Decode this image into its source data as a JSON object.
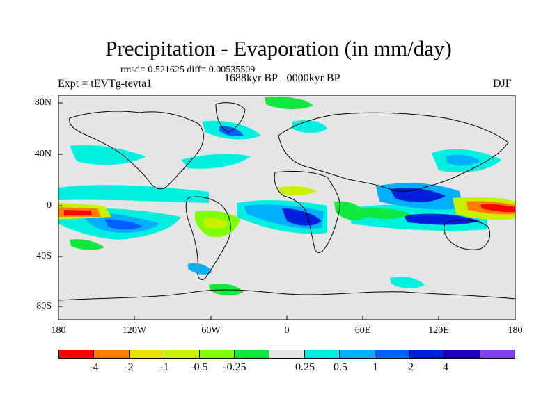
{
  "title": "Precipitation - Evaporation (in mm/day)",
  "stats": "rmsd= 0.521625 diff= 0.00535509",
  "experiment": "Expt = tEVTg-tevta1",
  "period": "1688kyr BP - 0000kyr BP",
  "season": "DJF",
  "lat_labels": [
    "80N",
    "40N",
    "0",
    "40S",
    "80S"
  ],
  "lon_labels": [
    "180",
    "120W",
    "60W",
    "0",
    "60E",
    "120E",
    "180"
  ],
  "colorbar": {
    "colors": [
      "#ff0000",
      "#ff8000",
      "#e8e000",
      "#c8f000",
      "#80ff00",
      "#10e840",
      "#e5e5e5",
      "#00f0e0",
      "#00b0ff",
      "#0060ff",
      "#0020e0",
      "#2000c0",
      "#8040f0"
    ],
    "labels": [
      "-4",
      "-2",
      "-1",
      "-0.5",
      "-0.25",
      "0.25",
      "0.5",
      "1",
      "2",
      "4"
    ]
  },
  "field_colors": {
    "neutral": "#e5e5e5",
    "positive_light": "#00f0e0",
    "positive_mid": "#00b0ff",
    "positive_strong": "#0020e0",
    "negative_light": "#c8f000",
    "negative_mid": "#80ff00",
    "negative_green": "#10e840",
    "negative_strong": "#ff0000",
    "negative_orange": "#ff8000",
    "coastline": "#000000"
  }
}
